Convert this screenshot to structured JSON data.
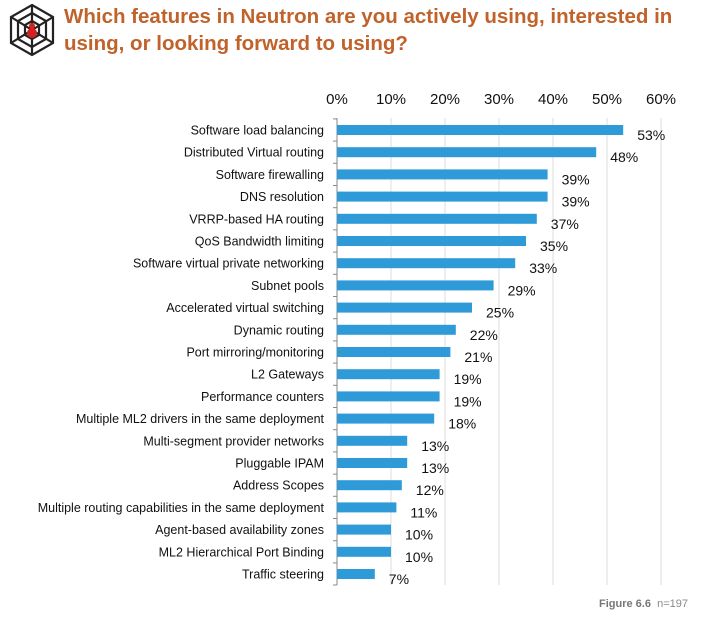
{
  "title": "Which features in Neutron are you actively using, interested in using, or looking forward to using?",
  "figure_label": "Figure 6.6",
  "sample_size": "n=197",
  "logo_icon": "spider-web-icon",
  "colors": {
    "title": "#c0622a",
    "bar": "#2e9bd8",
    "grid": "#dddddd"
  },
  "chart_data": {
    "type": "bar",
    "orientation": "horizontal",
    "categories": [
      "Software load balancing",
      "Distributed Virtual routing",
      "Software firewalling",
      "DNS resolution",
      "VRRP-based HA routing",
      "QoS Bandwidth limiting",
      "Software virtual private networking",
      "Subnet pools",
      "Accelerated virtual switching",
      "Dynamic routing",
      "Port mirroring/monitoring",
      "L2 Gateways",
      "Performance counters",
      "Multiple ML2 drivers in the same deployment",
      "Multi-segment provider networks",
      "Pluggable IPAM",
      "Address Scopes",
      "Multiple routing capabilities in the same deployment",
      "Agent-based availability zones",
      "ML2 Hierarchical Port Binding",
      "Traffic steering"
    ],
    "values": [
      53,
      48,
      39,
      39,
      37,
      35,
      33,
      29,
      25,
      22,
      21,
      19,
      19,
      18,
      13,
      13,
      12,
      11,
      10,
      10,
      7
    ],
    "data_labels": [
      "53%",
      "48%",
      "39%",
      "39%",
      "37%",
      "35%",
      "33%",
      "29%",
      "25%",
      "22%",
      "21%",
      "19%",
      "19%",
      "18%",
      "13%",
      "13%",
      "12%",
      "11%",
      "10%",
      "10%",
      "7%"
    ],
    "xlim": [
      0,
      60
    ],
    "x_ticks": [
      "0%",
      "10%",
      "20%",
      "30%",
      "40%",
      "50%",
      "60%"
    ],
    "x_axis_position": "top",
    "grid": true,
    "legend": "none"
  }
}
